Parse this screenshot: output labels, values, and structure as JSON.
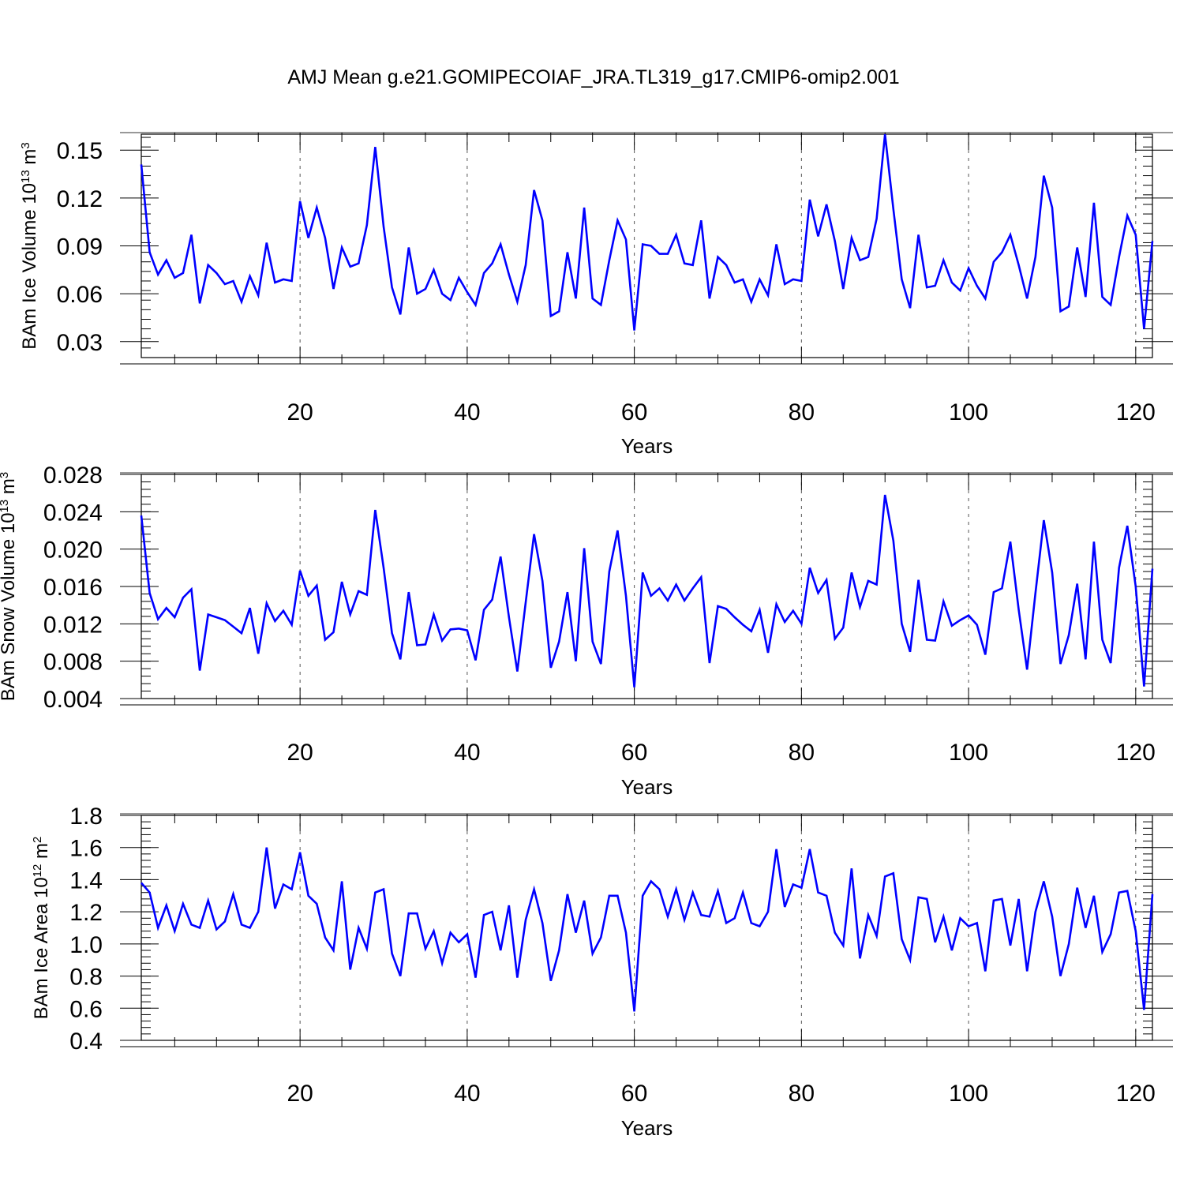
{
  "title": "AMJ Mean g.e21.GOMIPECOIAF_JRA.TL319_g17.CMIP6-omip2.001",
  "colors": {
    "series": "#0000ff",
    "axes": "#000000",
    "grid": "#555555"
  },
  "chart_data": [
    {
      "type": "line",
      "ylabel_prefix": "BAm Ice Volume 10",
      "ylabel_exp": "13",
      "ylabel_unit": " m",
      "ylabel_unit_exp": "3",
      "xlabel": "Years",
      "xlim": [
        1,
        122
      ],
      "ylim": [
        0.02,
        0.16
      ],
      "xticks": [
        20,
        40,
        60,
        80,
        100,
        120
      ],
      "xtick_labels": [
        "20",
        "40",
        "60",
        "80",
        "100",
        "120"
      ],
      "yticks": [
        0.03,
        0.06,
        0.09,
        0.12,
        0.15
      ],
      "ytick_labels": [
        "0.03",
        "0.06",
        "0.09",
        "0.12",
        "0.15"
      ],
      "yminor_step": 0.006,
      "values": [
        0.141,
        0.086,
        0.072,
        0.081,
        0.07,
        0.073,
        0.097,
        0.054,
        0.078,
        0.073,
        0.066,
        0.068,
        0.055,
        0.071,
        0.059,
        0.092,
        0.067,
        0.069,
        0.068,
        0.118,
        0.095,
        0.114,
        0.095,
        0.063,
        0.089,
        0.077,
        0.079,
        0.103,
        0.152,
        0.102,
        0.064,
        0.047,
        0.089,
        0.06,
        0.063,
        0.075,
        0.06,
        0.056,
        0.07,
        0.061,
        0.053,
        0.073,
        0.079,
        0.091,
        0.072,
        0.055,
        0.078,
        0.125,
        0.106,
        0.046,
        0.049,
        0.086,
        0.057,
        0.114,
        0.057,
        0.053,
        0.081,
        0.106,
        0.094,
        0.037,
        0.091,
        0.09,
        0.085,
        0.085,
        0.097,
        0.079,
        0.078,
        0.106,
        0.057,
        0.083,
        0.078,
        0.067,
        0.069,
        0.055,
        0.069,
        0.059,
        0.091,
        0.066,
        0.069,
        0.068,
        0.119,
        0.096,
        0.116,
        0.093,
        0.063,
        0.095,
        0.081,
        0.083,
        0.107,
        0.16,
        0.113,
        0.069,
        0.051,
        0.097,
        0.064,
        0.065,
        0.081,
        0.067,
        0.062,
        0.076,
        0.065,
        0.057,
        0.08,
        0.086,
        0.097,
        0.078,
        0.057,
        0.083,
        0.134,
        0.114,
        0.049,
        0.052,
        0.089,
        0.058,
        0.117,
        0.058,
        0.053,
        0.083,
        0.109,
        0.097,
        0.038,
        0.093
      ]
    },
    {
      "type": "line",
      "ylabel_prefix": "BAm Snow Volume 10",
      "ylabel_exp": "13",
      "ylabel_unit": " m",
      "ylabel_unit_exp": "3",
      "xlabel": "Years",
      "xlim": [
        1,
        122
      ],
      "ylim": [
        0.004,
        0.028
      ],
      "xticks": [
        20,
        40,
        60,
        80,
        100,
        120
      ],
      "xtick_labels": [
        "20",
        "40",
        "60",
        "80",
        "100",
        "120"
      ],
      "yticks": [
        0.004,
        0.008,
        0.012,
        0.016,
        0.02,
        0.024,
        0.028
      ],
      "ytick_labels": [
        "0.004",
        "0.008",
        "0.012",
        "0.016",
        "0.020",
        "0.024",
        "0.028"
      ],
      "yminor_step": 0.0008,
      "values": [
        0.0236,
        0.0153,
        0.0125,
        0.0137,
        0.0127,
        0.0148,
        0.0157,
        0.007,
        0.013,
        0.0127,
        0.0124,
        0.0117,
        0.011,
        0.0137,
        0.0088,
        0.0142,
        0.0123,
        0.0134,
        0.0119,
        0.0177,
        0.015,
        0.0161,
        0.0103,
        0.0111,
        0.0165,
        0.013,
        0.0155,
        0.0151,
        0.0242,
        0.018,
        0.011,
        0.0082,
        0.0154,
        0.0097,
        0.0098,
        0.013,
        0.0102,
        0.0114,
        0.0115,
        0.0113,
        0.0081,
        0.0135,
        0.0146,
        0.0192,
        0.0127,
        0.0069,
        0.0143,
        0.0216,
        0.0166,
        0.0073,
        0.0101,
        0.0154,
        0.008,
        0.0201,
        0.0101,
        0.0077,
        0.0176,
        0.022,
        0.015,
        0.0052,
        0.0175,
        0.015,
        0.0158,
        0.0145,
        0.0162,
        0.0145,
        0.0158,
        0.017,
        0.0078,
        0.0139,
        0.0136,
        0.0127,
        0.0119,
        0.0112,
        0.0135,
        0.0089,
        0.0141,
        0.0122,
        0.0134,
        0.012,
        0.018,
        0.0153,
        0.0167,
        0.0104,
        0.0116,
        0.0175,
        0.0138,
        0.0166,
        0.0162,
        0.0258,
        0.0209,
        0.012,
        0.009,
        0.0167,
        0.0103,
        0.0102,
        0.0144,
        0.0118,
        0.0124,
        0.0129,
        0.0119,
        0.0087,
        0.0154,
        0.0158,
        0.0208,
        0.0135,
        0.0071,
        0.0153,
        0.0231,
        0.0175,
        0.0077,
        0.0108,
        0.0163,
        0.0082,
        0.0208,
        0.0103,
        0.0078,
        0.018,
        0.0225,
        0.016,
        0.0053,
        0.0179
      ]
    },
    {
      "type": "line",
      "ylabel_prefix": "BAm Ice Area 10",
      "ylabel_exp": "12",
      "ylabel_unit": " m",
      "ylabel_unit_exp": "2",
      "xlabel": "Years",
      "xlim": [
        1,
        122
      ],
      "ylim": [
        0.4,
        1.8
      ],
      "xticks": [
        20,
        40,
        60,
        80,
        100,
        120
      ],
      "xtick_labels": [
        "20",
        "40",
        "60",
        "80",
        "100",
        "120"
      ],
      "yticks": [
        0.4,
        0.6,
        0.8,
        1.0,
        1.2,
        1.4,
        1.6,
        1.8
      ],
      "ytick_labels": [
        "0.4",
        "0.6",
        "0.8",
        "1.0",
        "1.2",
        "1.4",
        "1.6",
        "1.8"
      ],
      "yminor_step": 0.04,
      "values": [
        1.38,
        1.32,
        1.1,
        1.24,
        1.08,
        1.25,
        1.12,
        1.1,
        1.27,
        1.09,
        1.14,
        1.31,
        1.12,
        1.1,
        1.2,
        1.6,
        1.22,
        1.37,
        1.34,
        1.57,
        1.3,
        1.25,
        1.04,
        0.96,
        1.39,
        0.84,
        1.1,
        0.97,
        1.32,
        1.34,
        0.94,
        0.8,
        1.19,
        1.19,
        0.97,
        1.08,
        0.88,
        1.07,
        1.01,
        1.06,
        0.79,
        1.18,
        1.2,
        0.96,
        1.24,
        0.79,
        1.15,
        1.34,
        1.13,
        0.77,
        0.96,
        1.31,
        1.07,
        1.27,
        0.94,
        1.04,
        1.3,
        1.3,
        1.07,
        0.58,
        1.3,
        1.39,
        1.34,
        1.17,
        1.34,
        1.15,
        1.32,
        1.18,
        1.17,
        1.33,
        1.13,
        1.16,
        1.32,
        1.13,
        1.11,
        1.2,
        1.59,
        1.23,
        1.37,
        1.35,
        1.59,
        1.32,
        1.3,
        1.07,
        0.99,
        1.47,
        0.91,
        1.18,
        1.05,
        1.42,
        1.44,
        1.03,
        0.9,
        1.29,
        1.28,
        1.01,
        1.17,
        0.96,
        1.16,
        1.11,
        1.13,
        0.83,
        1.27,
        1.28,
        0.99,
        1.28,
        0.83,
        1.2,
        1.39,
        1.17,
        0.8,
        1.0,
        1.35,
        1.1,
        1.3,
        0.95,
        1.06,
        1.32,
        1.33,
        1.08,
        0.59,
        1.31
      ]
    }
  ]
}
